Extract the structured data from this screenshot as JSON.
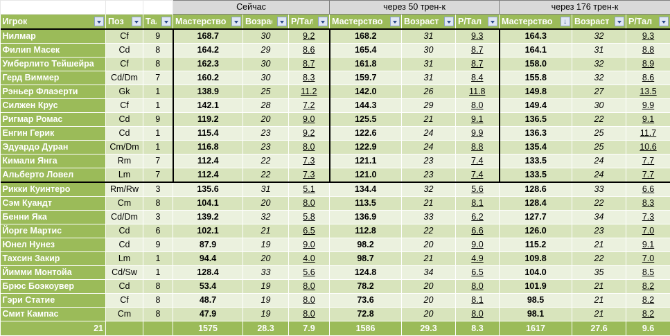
{
  "groups": {
    "now": "Сейчас",
    "after50": "через 50 трен-к",
    "after176": "через 176 трен-к"
  },
  "headers": {
    "player": "Игрок",
    "pos": "Поз",
    "tal": "Тал",
    "mastery": "Мастерство",
    "age": "Возраст",
    "rtal": "Р/Тал"
  },
  "sorted_column": "after176.mastery",
  "colors": {
    "header_green": "#9bbb59",
    "row_dark": "#d8e4bc",
    "row_light": "#ebf1de",
    "group_grey": "#d9d9d9"
  },
  "rows": [
    [
      "Нилмар",
      "Cf",
      "9",
      "168.7",
      "30",
      "9.2",
      "168.2",
      "31",
      "9.3",
      "164.3",
      "32",
      "9.3"
    ],
    [
      "Филип Масек",
      "Cd",
      "8",
      "164.2",
      "29",
      "8.6",
      "165.4",
      "30",
      "8.7",
      "164.1",
      "31",
      "8.8"
    ],
    [
      "Умберлито Тейшейра",
      "Cf",
      "8",
      "162.3",
      "30",
      "8.7",
      "161.8",
      "31",
      "8.7",
      "158.0",
      "32",
      "8.9"
    ],
    [
      "Герд Виммер",
      "Cd/Dm",
      "7",
      "160.2",
      "30",
      "8.3",
      "159.7",
      "31",
      "8.4",
      "155.8",
      "32",
      "8.6"
    ],
    [
      "Рэньер Флаэерти",
      "Gk",
      "1",
      "138.9",
      "25",
      "11.2",
      "142.0",
      "26",
      "11.8",
      "149.8",
      "27",
      "13.5"
    ],
    [
      "Силжен Крус",
      "Cf",
      "1",
      "142.1",
      "28",
      "7.2",
      "144.3",
      "29",
      "8.0",
      "149.4",
      "30",
      "9.9"
    ],
    [
      "Ригмар Ромас",
      "Cd",
      "9",
      "119.2",
      "20",
      "9.0",
      "125.5",
      "21",
      "9.1",
      "136.5",
      "22",
      "9.1"
    ],
    [
      "Енгин Герик",
      "Cd",
      "1",
      "115.4",
      "23",
      "9.2",
      "122.6",
      "24",
      "9.9",
      "136.3",
      "25",
      "11.7"
    ],
    [
      "Эдуардо Дуран",
      "Cm/Dm",
      "1",
      "116.8",
      "23",
      "8.0",
      "122.9",
      "24",
      "8.8",
      "135.4",
      "25",
      "10.6"
    ],
    [
      "Кимали Янга",
      "Rm",
      "7",
      "112.4",
      "22",
      "7.3",
      "121.1",
      "23",
      "7.4",
      "133.5",
      "24",
      "7.7"
    ],
    [
      "Альберто Ловел",
      "Lm",
      "7",
      "112.4",
      "22",
      "7.3",
      "121.0",
      "23",
      "7.4",
      "133.5",
      "24",
      "7.7"
    ],
    [
      "Рикки Куинтеро",
      "Rm/Rw",
      "3",
      "135.6",
      "31",
      "5.1",
      "134.4",
      "32",
      "5.6",
      "128.6",
      "33",
      "6.6"
    ],
    [
      "Сэм Куандт",
      "Cm",
      "8",
      "104.1",
      "20",
      "8.0",
      "113.5",
      "21",
      "8.1",
      "128.4",
      "22",
      "8.3"
    ],
    [
      "Бенни Яка",
      "Cd/Dm",
      "3",
      "139.2",
      "32",
      "5.8",
      "136.9",
      "33",
      "6.2",
      "127.7",
      "34",
      "7.3"
    ],
    [
      "Йорге Мартис",
      "Cd",
      "6",
      "102.1",
      "21",
      "6.5",
      "112.8",
      "22",
      "6.6",
      "126.0",
      "23",
      "7.0"
    ],
    [
      "Юнел Нунез",
      "Cd",
      "9",
      "87.9",
      "19",
      "9.0",
      "98.2",
      "20",
      "9.0",
      "115.2",
      "21",
      "9.1"
    ],
    [
      "Тахсин Закир",
      "Lm",
      "1",
      "94.4",
      "20",
      "4.0",
      "98.7",
      "21",
      "4.9",
      "109.8",
      "22",
      "7.0"
    ],
    [
      "Йимми Монтойа",
      "Cd/Sw",
      "1",
      "128.4",
      "33",
      "5.6",
      "124.8",
      "34",
      "6.5",
      "104.0",
      "35",
      "8.5"
    ],
    [
      "Брюс Боэкоувер",
      "Cd",
      "8",
      "53.4",
      "19",
      "8.0",
      "78.2",
      "20",
      "8.0",
      "101.9",
      "21",
      "8.2"
    ],
    [
      "Гэри Статие",
      "Cf",
      "8",
      "48.7",
      "19",
      "8.0",
      "73.6",
      "20",
      "8.1",
      "98.5",
      "21",
      "8.2"
    ],
    [
      "Смит Кампас",
      "Cm",
      "8",
      "47.9",
      "19",
      "8.0",
      "72.8",
      "20",
      "8.0",
      "98.1",
      "21",
      "8.2"
    ]
  ],
  "totals": [
    "21",
    "",
    "",
    "1575",
    "28.3",
    "7.9",
    "1586",
    "29.3",
    "8.3",
    "1617",
    "27.6",
    "9.6"
  ]
}
